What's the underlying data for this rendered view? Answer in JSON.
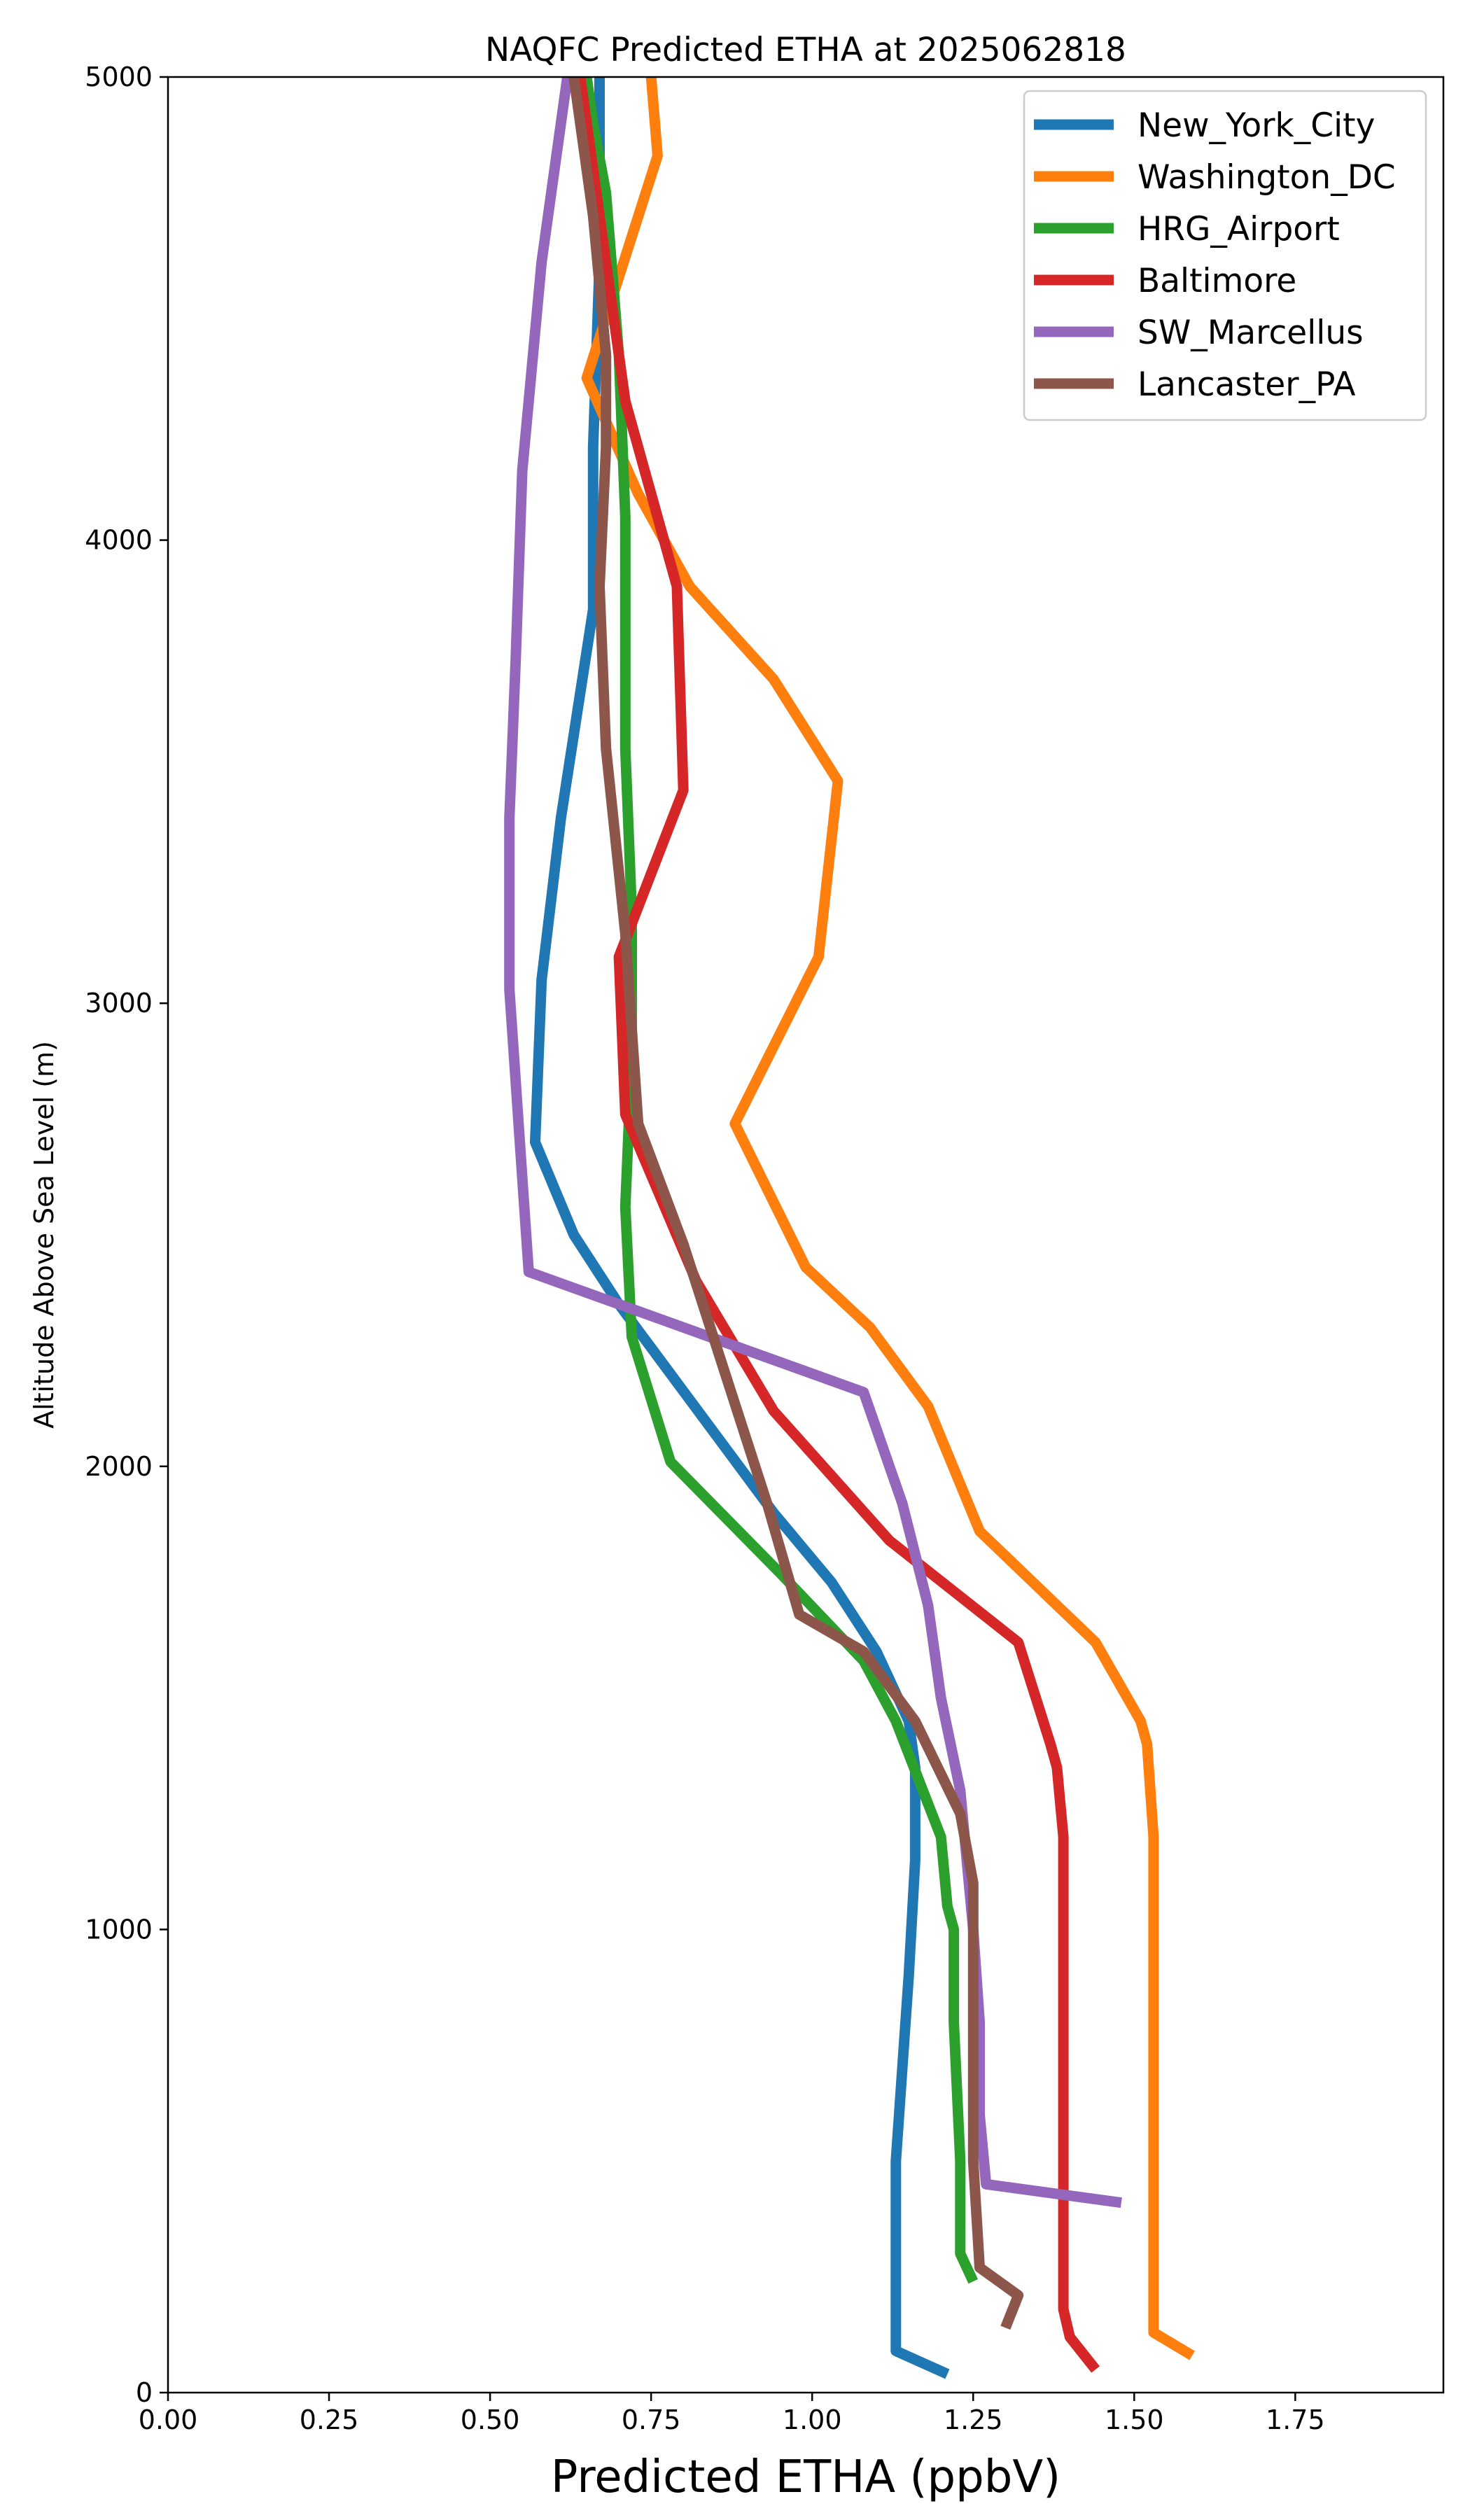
{
  "chart_data": {
    "type": "line",
    "title": "NAQFC Predicted ETHA at 2025062818",
    "xlabel": "Predicted ETHA (ppbV)",
    "ylabel": "Altitude Above Sea Level (m)",
    "xlim": [
      0.0,
      1.98
    ],
    "ylim": [
      0,
      5000
    ],
    "xticks": [
      0.0,
      0.25,
      0.5,
      0.75,
      1.0,
      1.25,
      1.5,
      1.75
    ],
    "xtick_labels": [
      "0.00",
      "0.25",
      "0.50",
      "0.75",
      "1.00",
      "1.25",
      "1.50",
      "1.75"
    ],
    "yticks": [
      0,
      1000,
      2000,
      3000,
      4000,
      5000
    ],
    "ytick_labels": [
      "0",
      "1000",
      "2000",
      "3000",
      "4000",
      "5000"
    ],
    "grid": false,
    "legend_position": "top-right",
    "series": [
      {
        "name": "New_York_City",
        "color": "#1f77b4",
        "x": [
          1.21,
          1.13,
          1.13,
          1.13,
          1.14,
          1.15,
          1.16,
          1.16,
          1.15,
          1.1,
          1.03,
          0.94,
          0.86,
          0.78,
          0.7,
          0.63,
          0.57,
          0.58,
          0.61,
          0.66,
          0.66,
          0.67,
          0.67
        ],
        "y": [
          40,
          90,
          300,
          500,
          700,
          900,
          1150,
          1350,
          1450,
          1600,
          1750,
          1900,
          2050,
          2200,
          2350,
          2500,
          2700,
          3050,
          3400,
          3850,
          4200,
          4600,
          5000
        ]
      },
      {
        "name": "Washington_DC",
        "color": "#ff7f0e",
        "x": [
          1.59,
          1.53,
          1.53,
          1.53,
          1.53,
          1.53,
          1.52,
          1.51,
          1.44,
          1.26,
          1.18,
          1.09,
          0.99,
          0.88,
          1.01,
          1.04,
          0.94,
          0.81,
          0.73,
          0.65,
          0.76,
          0.75
        ],
        "y": [
          80,
          130,
          400,
          700,
          1000,
          1200,
          1400,
          1450,
          1620,
          1860,
          2130,
          2300,
          2430,
          2740,
          3100,
          3480,
          3700,
          3900,
          4100,
          4350,
          4830,
          5000
        ]
      },
      {
        "name": "HRG_Airport",
        "color": "#2ca02c",
        "x": [
          1.25,
          1.23,
          1.23,
          1.22,
          1.22,
          1.21,
          1.2,
          1.13,
          1.08,
          0.95,
          0.78,
          0.72,
          0.71,
          0.72,
          0.72,
          0.71,
          0.71,
          0.71,
          0.7,
          0.68,
          0.66,
          0.65
        ],
        "y": [
          240,
          300,
          500,
          800,
          1000,
          1050,
          1200,
          1450,
          1580,
          1770,
          2010,
          2280,
          2560,
          2890,
          3200,
          3550,
          3800,
          4050,
          4400,
          4750,
          4900,
          5000
        ]
      },
      {
        "name": "Baltimore",
        "color": "#d62728",
        "x": [
          1.44,
          1.4,
          1.39,
          1.39,
          1.39,
          1.39,
          1.39,
          1.38,
          1.37,
          1.32,
          1.12,
          0.94,
          0.82,
          0.71,
          0.7,
          0.8,
          0.79,
          0.71,
          0.68,
          0.64
        ],
        "y": [
          50,
          120,
          180,
          400,
          700,
          1000,
          1200,
          1350,
          1400,
          1620,
          1840,
          2120,
          2400,
          2760,
          3100,
          3460,
          3900,
          4300,
          4600,
          5000
        ]
      },
      {
        "name": "SW_Marcellus",
        "color": "#9467bd",
        "x": [
          1.48,
          1.27,
          1.26,
          1.26,
          1.25,
          1.23,
          1.2,
          1.18,
          1.14,
          1.08,
          0.56,
          0.53,
          0.53,
          0.54,
          0.55,
          0.58,
          0.62
        ],
        "y": [
          410,
          450,
          600,
          800,
          1000,
          1300,
          1500,
          1700,
          1920,
          2160,
          2420,
          3030,
          3400,
          3750,
          4150,
          4600,
          5000
        ]
      },
      {
        "name": "Lancaster_PA",
        "color": "#8c564b",
        "x": [
          1.3,
          1.32,
          1.26,
          1.25,
          1.25,
          1.25,
          1.25,
          1.23,
          1.16,
          1.08,
          0.98,
          0.93,
          0.8,
          0.73,
          0.71,
          0.68,
          0.67,
          0.68,
          0.68,
          0.66,
          0.63
        ],
        "y": [
          140,
          210,
          270,
          500,
          700,
          900,
          1100,
          1250,
          1450,
          1600,
          1680,
          1920,
          2480,
          2740,
          3150,
          3550,
          3900,
          4200,
          4400,
          4700,
          5000
        ]
      }
    ]
  }
}
